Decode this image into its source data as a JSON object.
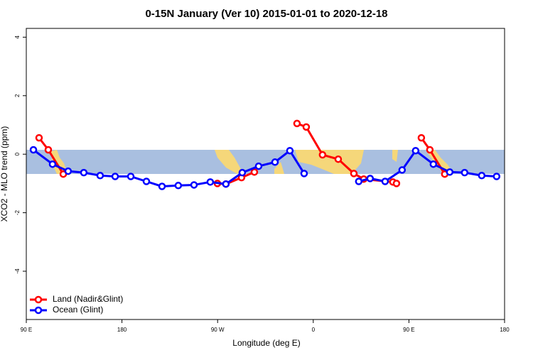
{
  "chart_data": {
    "type": "line",
    "title": "0-15N January (Ver 10)   2015-01-01 to 2020-12-18",
    "x_label": "Longitude (deg E)",
    "y_label": "XCO2 - MLO trend (ppm)",
    "xlim": [
      90,
      540
    ],
    "ylim": [
      -5.65,
      4.3
    ],
    "xticks": [
      {
        "value": 90,
        "label": "90 E"
      },
      180,
      {
        "value": 270,
        "label": "90 W"
      },
      {
        "value": 360,
        "label": "0"
      },
      {
        "value": 450,
        "label": "90 E"
      },
      {
        "value": 540,
        "label": "180"
      }
    ],
    "yticks": [
      -4,
      -2,
      0,
      2,
      4
    ],
    "legend": "bottomleft",
    "series": [
      {
        "name": "Land (Nadir&Glint)",
        "color": "#ff0000",
        "x": [
          102.0,
          110.7,
          124.8,
          269.8,
          277.8,
          292.5,
          304.6,
          344.7,
          353.4,
          368.7,
          383.5,
          398.2,
          407.5,
          434.9,
          438.3,
          461.7,
          469.7,
          483.7
        ],
        "values": [
          0.56,
          0.15,
          -0.68,
          -1.0,
          -1.02,
          -0.8,
          -0.61,
          1.05,
          0.93,
          -0.02,
          -0.17,
          -0.66,
          -0.85,
          -0.95,
          -1.0,
          0.56,
          0.15,
          -0.68
        ],
        "breaks_after": [
          2,
          6,
          14
        ]
      },
      {
        "name": "Ocean (Glint)",
        "color": "#0000ff",
        "x": [
          96.7,
          114.7,
          129.4,
          144.1,
          159.5,
          173.6,
          188.3,
          203.0,
          217.7,
          233.0,
          247.8,
          263.1,
          277.8,
          293.2,
          308.6,
          324.0,
          338.0,
          351.4,
          402.8,
          413.5,
          427.6,
          443.6,
          456.3,
          473.0,
          488.4,
          502.4,
          518.5,
          532.5
        ],
        "values": [
          0.15,
          -0.34,
          -0.58,
          -0.63,
          -0.73,
          -0.76,
          -0.76,
          -0.93,
          -1.1,
          -1.07,
          -1.05,
          -0.95,
          -1.02,
          -0.63,
          -0.41,
          -0.27,
          0.12,
          -0.66,
          -0.93,
          -0.83,
          -0.93,
          -0.54,
          0.12,
          -0.34,
          -0.61,
          -0.63,
          -0.73,
          -0.76
        ],
        "breaks_after": [
          17
        ]
      }
    ]
  }
}
